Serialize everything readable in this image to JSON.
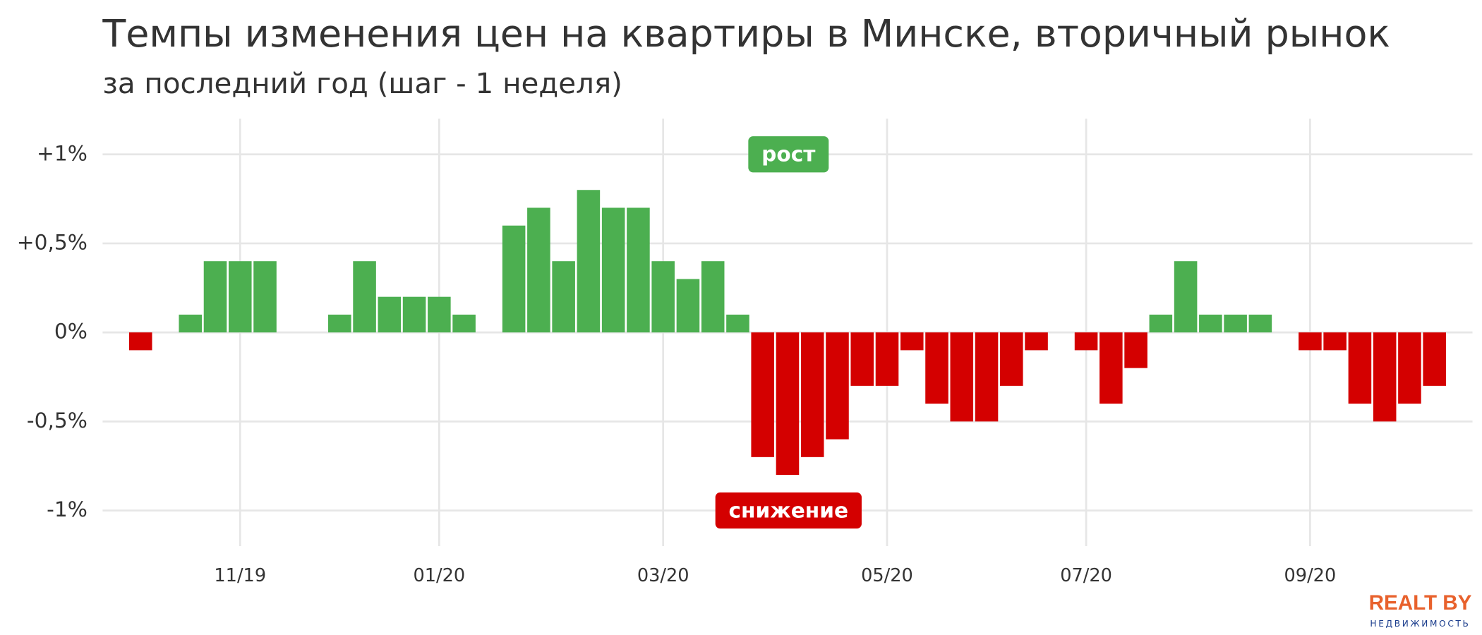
{
  "chart_data": {
    "type": "bar",
    "title": "Темпы изменения цен на квартиры в Минске, вторичный рынок",
    "subtitle": "за последний год (шаг - 1 неделя)",
    "categories": [
      null,
      null,
      null,
      null,
      "11/19",
      null,
      null,
      null,
      null,
      null,
      null,
      null,
      "01/20",
      null,
      null,
      null,
      null,
      null,
      null,
      null,
      null,
      "03/20",
      null,
      null,
      null,
      null,
      null,
      null,
      null,
      null,
      "05/20",
      null,
      null,
      null,
      null,
      null,
      null,
      null,
      "07/20",
      null,
      null,
      null,
      null,
      null,
      null,
      null,
      null,
      "09/20",
      null,
      null,
      null,
      null,
      null
    ],
    "values": [
      -0.1,
      0,
      0.1,
      0.4,
      0.4,
      0.4,
      0,
      0,
      0.1,
      0.4,
      0.2,
      0.2,
      0.2,
      0.1,
      0,
      0.6,
      0.7,
      0.4,
      0.8,
      0.7,
      0.7,
      0.4,
      0.3,
      0.4,
      0.1,
      -0.7,
      -0.8,
      -0.7,
      -0.6,
      -0.3,
      -0.3,
      -0.1,
      -0.4,
      -0.5,
      -0.5,
      -0.3,
      -0.1,
      0,
      -0.1,
      -0.4,
      -0.2,
      0.1,
      0.4,
      0.1,
      0.1,
      0.1,
      0,
      -0.1,
      -0.1,
      -0.4,
      -0.5,
      -0.4,
      -0.3
    ],
    "positive_color": "#4caf50",
    "negative_color": "#d40000",
    "ylim": [
      -1.2,
      1.2
    ],
    "yticks": [
      {
        "value": -1,
        "label": "-1%"
      },
      {
        "value": -0.5,
        "label": "-0,5%"
      },
      {
        "value": 0,
        "label": "0%"
      },
      {
        "value": 0.5,
        "label": "+0,5%"
      },
      {
        "value": 1,
        "label": "+1%"
      }
    ],
    "grid": true,
    "annotations": [
      {
        "text": "рост",
        "color": "#4caf50"
      },
      {
        "text": "снижение",
        "color": "#d40000"
      }
    ],
    "logo": {
      "brand": "REALT BY",
      "tagline": "НЕДВИЖИМОСТЬ"
    }
  }
}
